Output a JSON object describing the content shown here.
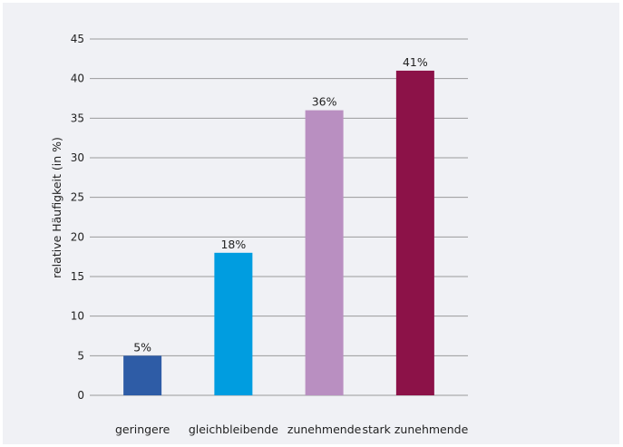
{
  "chart_data": {
    "type": "bar",
    "categories": [
      "geringere",
      "gleichbleibende",
      "zunehmende",
      "stark zunehmende"
    ],
    "values": [
      5,
      18,
      36,
      41
    ],
    "data_labels": [
      "5%",
      "18%",
      "36%",
      "41%"
    ],
    "colors": [
      "#2e5ca6",
      "#009de0",
      "#b98fc1",
      "#8c1248"
    ],
    "title": "",
    "xlabel": "",
    "ylabel": "relative Häufigkeit (in %)",
    "ylim": [
      0,
      45
    ],
    "yticks": [
      "0",
      "5",
      "10",
      "15",
      "20",
      "25",
      "30",
      "35",
      "40",
      "45"
    ],
    "grid": true,
    "grid_color": "#9a9a9a"
  }
}
